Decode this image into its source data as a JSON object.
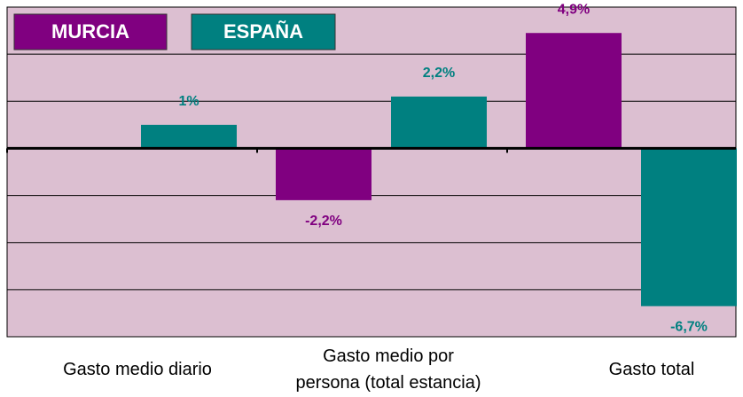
{
  "chart_data": {
    "type": "bar",
    "categories": [
      "Gasto medio diario",
      "Gasto medio por persona (total estancia)",
      "Gasto total"
    ],
    "series": [
      {
        "name": "MURCIA",
        "color": "#800080",
        "values": [
          null,
          -2.2,
          4.9
        ],
        "value_labels": [
          null,
          "-2,2%",
          "4,9%"
        ]
      },
      {
        "name": "ESPAÑA",
        "color": "#008080",
        "values": [
          1,
          2.2,
          -6.7
        ],
        "value_labels": [
          "1%",
          "2,2%",
          "-6,7%"
        ]
      }
    ],
    "ylim": [
      -8,
      6
    ],
    "yticks": [
      -8,
      -6,
      -4,
      -2,
      0,
      2,
      4,
      6
    ],
    "grid": true
  }
}
